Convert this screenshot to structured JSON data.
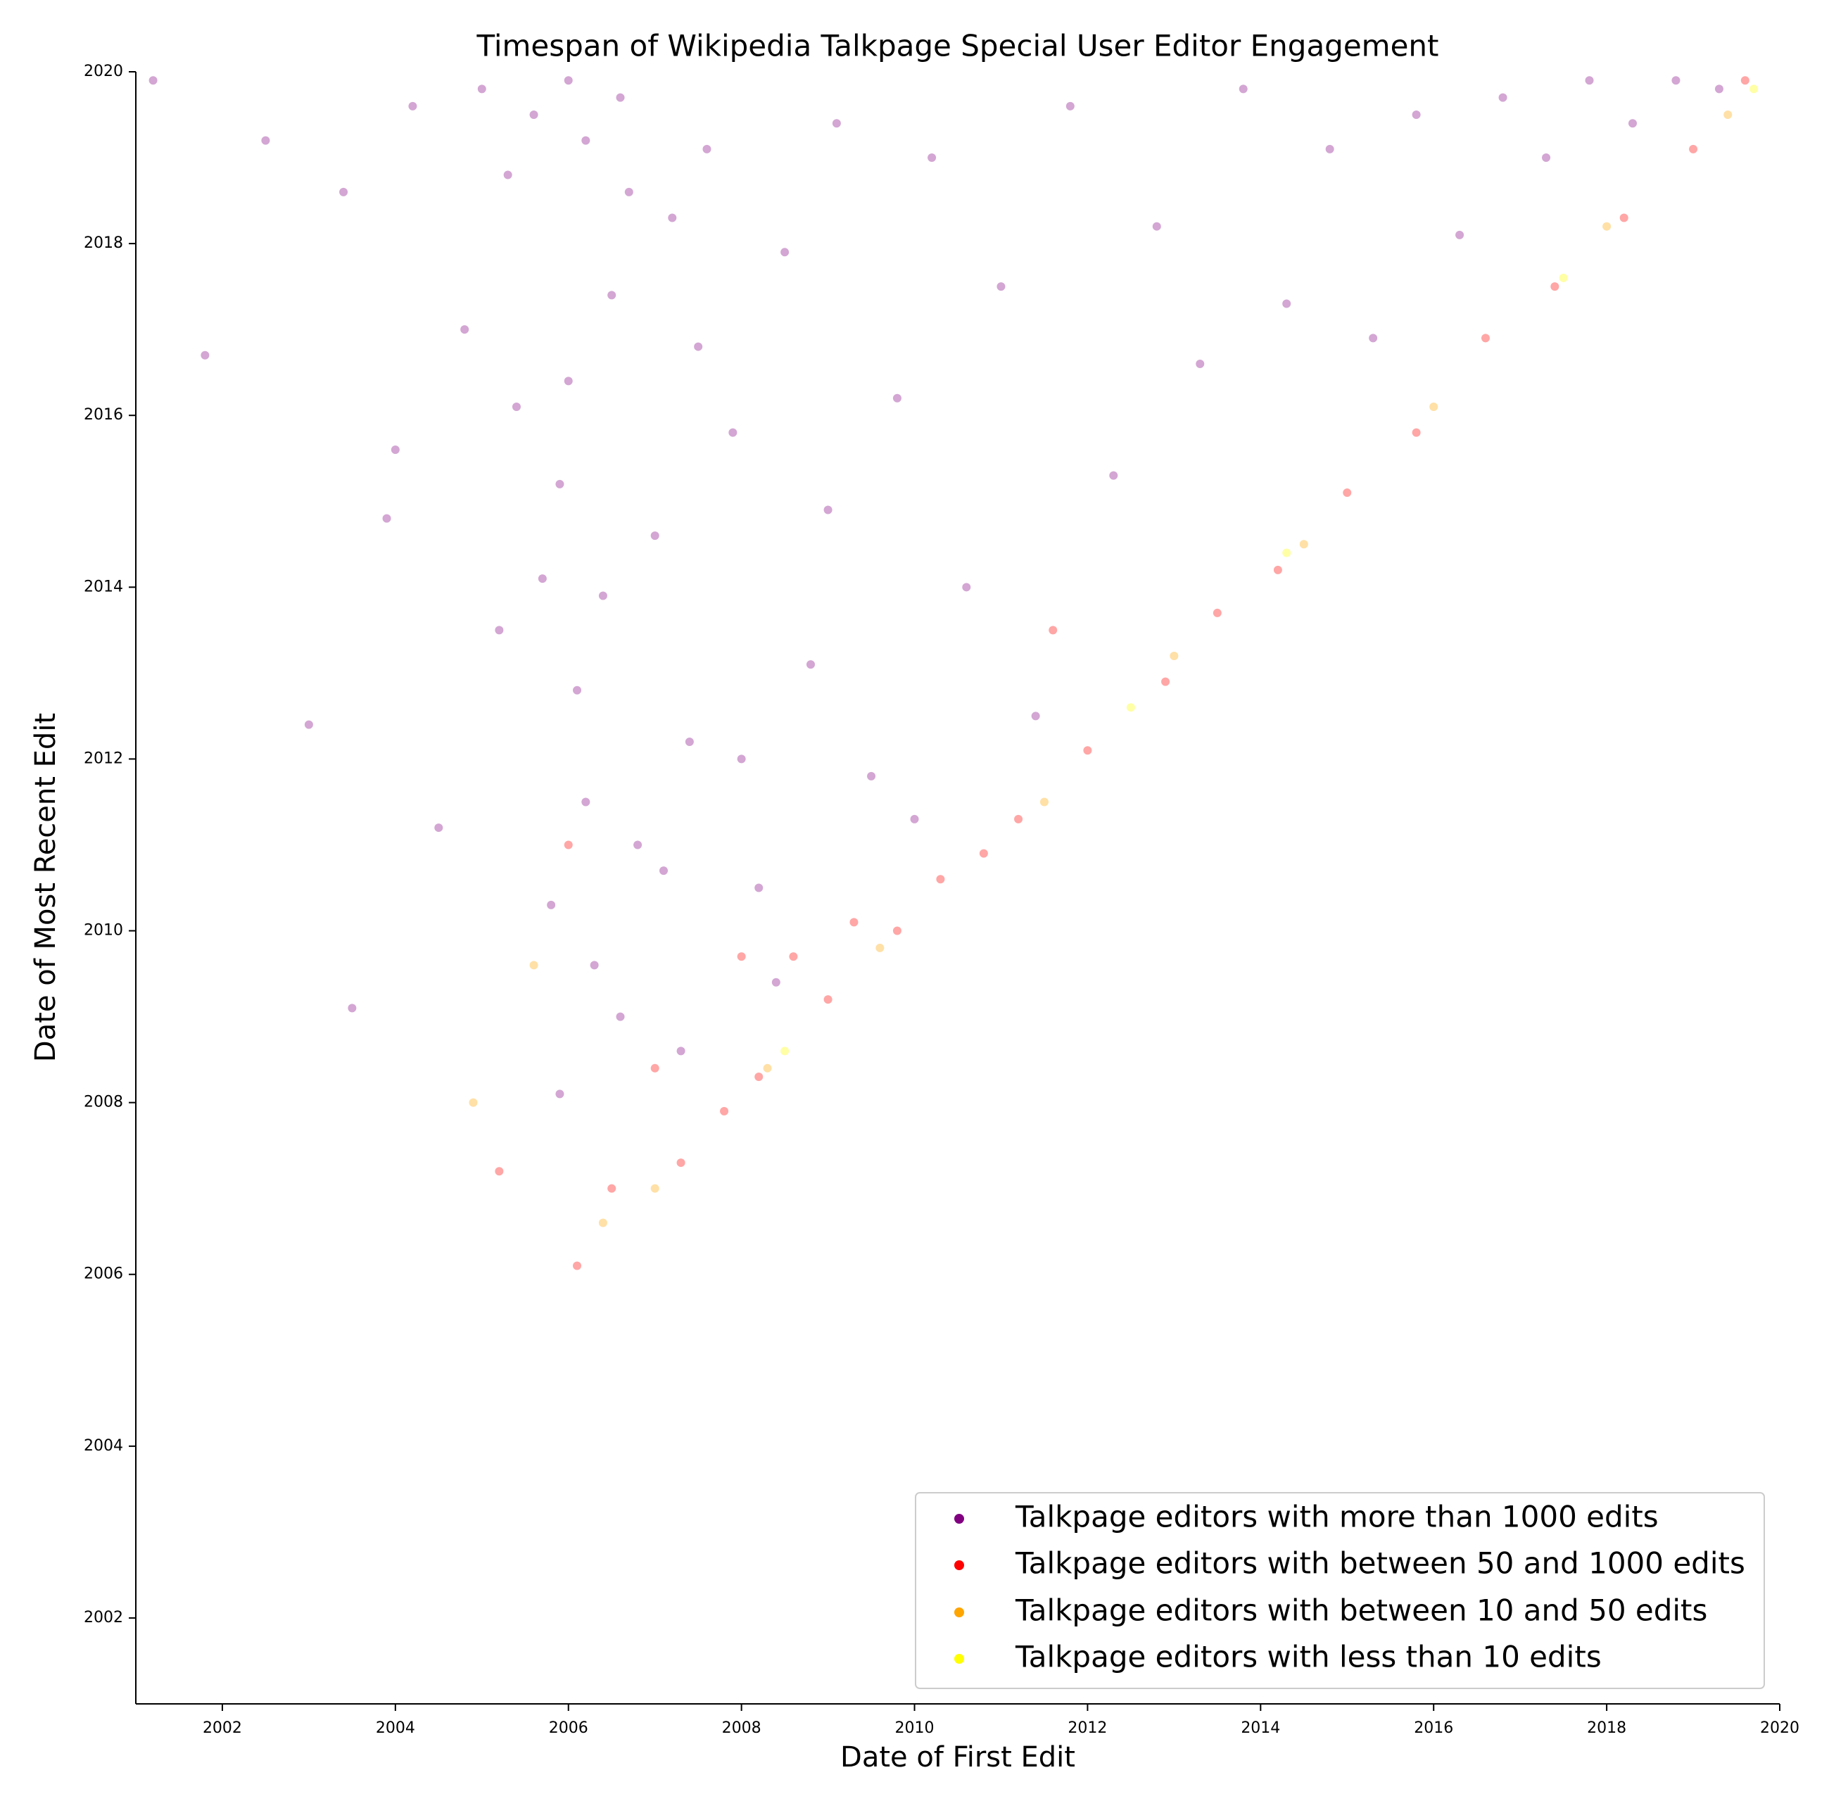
{
  "chart_data": {
    "type": "scatter",
    "title": "Timespan of Wikipedia Talkpage Special User Editor Engagement",
    "x_label": "Date of First Edit",
    "y_label": "Date of Most Recent Edit",
    "xlim": [
      2001,
      2020
    ],
    "ylim": [
      2001,
      2020
    ],
    "xticks": [
      2002,
      2004,
      2006,
      2008,
      2010,
      2012,
      2014,
      2016,
      2018,
      2020
    ],
    "yticks": [
      2002,
      2004,
      2006,
      2008,
      2010,
      2012,
      2014,
      2016,
      2018,
      2020
    ],
    "legend": "lower right",
    "series": [
      {
        "name": "Talkpage editors with more than 1000 edits",
        "color": "#800080",
        "x": [
          2001.2,
          2001.8,
          2002.5,
          2003.0,
          2003.4,
          2003.9,
          2004.2,
          2004.5,
          2004.8,
          2005.0,
          2005.2,
          2005.4,
          2005.6,
          2005.8,
          2005.9,
          2006.0,
          2006.1,
          2006.2,
          2006.3,
          2006.5,
          2006.6,
          2006.8,
          2007.0,
          2007.2,
          2007.4,
          2007.6,
          2007.9,
          2008.2,
          2008.5,
          2008.8,
          2009.1,
          2009.5,
          2009.8,
          2010.2,
          2010.6,
          2011.0,
          2011.4,
          2011.8,
          2012.3,
          2012.8,
          2013.3,
          2013.8,
          2014.3,
          2014.8,
          2015.3,
          2015.8,
          2016.3,
          2016.8,
          2017.3,
          2017.8,
          2018.3,
          2018.8,
          2019.3,
          2005.3,
          2005.7,
          2006.0,
          2006.4,
          2006.7,
          2007.1,
          2007.5,
          2008.0,
          2009.0,
          2010.0,
          2004.0,
          2003.5,
          2006.2,
          2005.9,
          2006.6,
          2007.3,
          2008.4
        ],
        "values": [
          2019.9,
          2016.7,
          2019.2,
          2012.4,
          2018.6,
          2014.8,
          2019.6,
          2011.2,
          2017.0,
          2019.8,
          2013.5,
          2016.1,
          2019.5,
          2010.3,
          2015.2,
          2019.9,
          2012.8,
          2019.2,
          2009.6,
          2017.4,
          2019.7,
          2011.0,
          2014.6,
          2018.3,
          2012.2,
          2019.1,
          2015.8,
          2010.5,
          2017.9,
          2013.1,
          2019.4,
          2011.8,
          2016.2,
          2019.0,
          2014.0,
          2017.5,
          2012.5,
          2019.6,
          2015.3,
          2018.2,
          2016.6,
          2019.8,
          2017.3,
          2019.1,
          2016.9,
          2019.5,
          2018.1,
          2019.7,
          2019.0,
          2019.9,
          2019.4,
          2019.9,
          2019.8,
          2018.8,
          2014.1,
          2016.4,
          2013.9,
          2018.6,
          2010.7,
          2016.8,
          2012.0,
          2014.9,
          2011.3,
          2015.6,
          2009.1,
          2011.5,
          2008.1,
          2009.0,
          2008.6,
          2009.4
        ]
      },
      {
        "name": "Talkpage editors with between 50 and 1000 edits",
        "color": "#ff0000",
        "x": [
          2005.2,
          2006.1,
          2006.5,
          2007.0,
          2007.3,
          2007.8,
          2008.2,
          2008.6,
          2009.0,
          2009.3,
          2009.8,
          2010.3,
          2010.8,
          2011.2,
          2011.6,
          2012.0,
          2012.9,
          2013.5,
          2014.2,
          2015.0,
          2015.8,
          2016.6,
          2017.4,
          2018.2,
          2019.0,
          2019.6,
          2006.0,
          2008.0
        ],
        "values": [
          2007.2,
          2006.1,
          2007.0,
          2008.4,
          2007.3,
          2007.9,
          2008.3,
          2009.7,
          2009.2,
          2010.1,
          2010.0,
          2010.6,
          2010.9,
          2011.3,
          2013.5,
          2012.1,
          2012.9,
          2013.7,
          2014.2,
          2015.1,
          2015.8,
          2016.9,
          2017.5,
          2018.3,
          2019.1,
          2019.9,
          2011.0,
          2009.7
        ]
      },
      {
        "name": "Talkpage editors with between 10 and 50 edits",
        "color": "#ffa500",
        "x": [
          2004.9,
          2005.6,
          2006.4,
          2007.0,
          2008.3,
          2009.6,
          2011.5,
          2013.0,
          2014.5,
          2016.0,
          2018.0,
          2019.4
        ],
        "values": [
          2008.0,
          2009.6,
          2006.6,
          2007.0,
          2008.4,
          2009.8,
          2011.5,
          2013.2,
          2014.5,
          2016.1,
          2018.2,
          2019.5
        ]
      },
      {
        "name": "Talkpage editors with less than 10 edits",
        "color": "#ffff00",
        "x": [
          2008.5,
          2012.5,
          2014.3,
          2017.5,
          2019.7
        ],
        "values": [
          2008.6,
          2012.6,
          2014.4,
          2017.6,
          2019.8
        ]
      }
    ]
  }
}
